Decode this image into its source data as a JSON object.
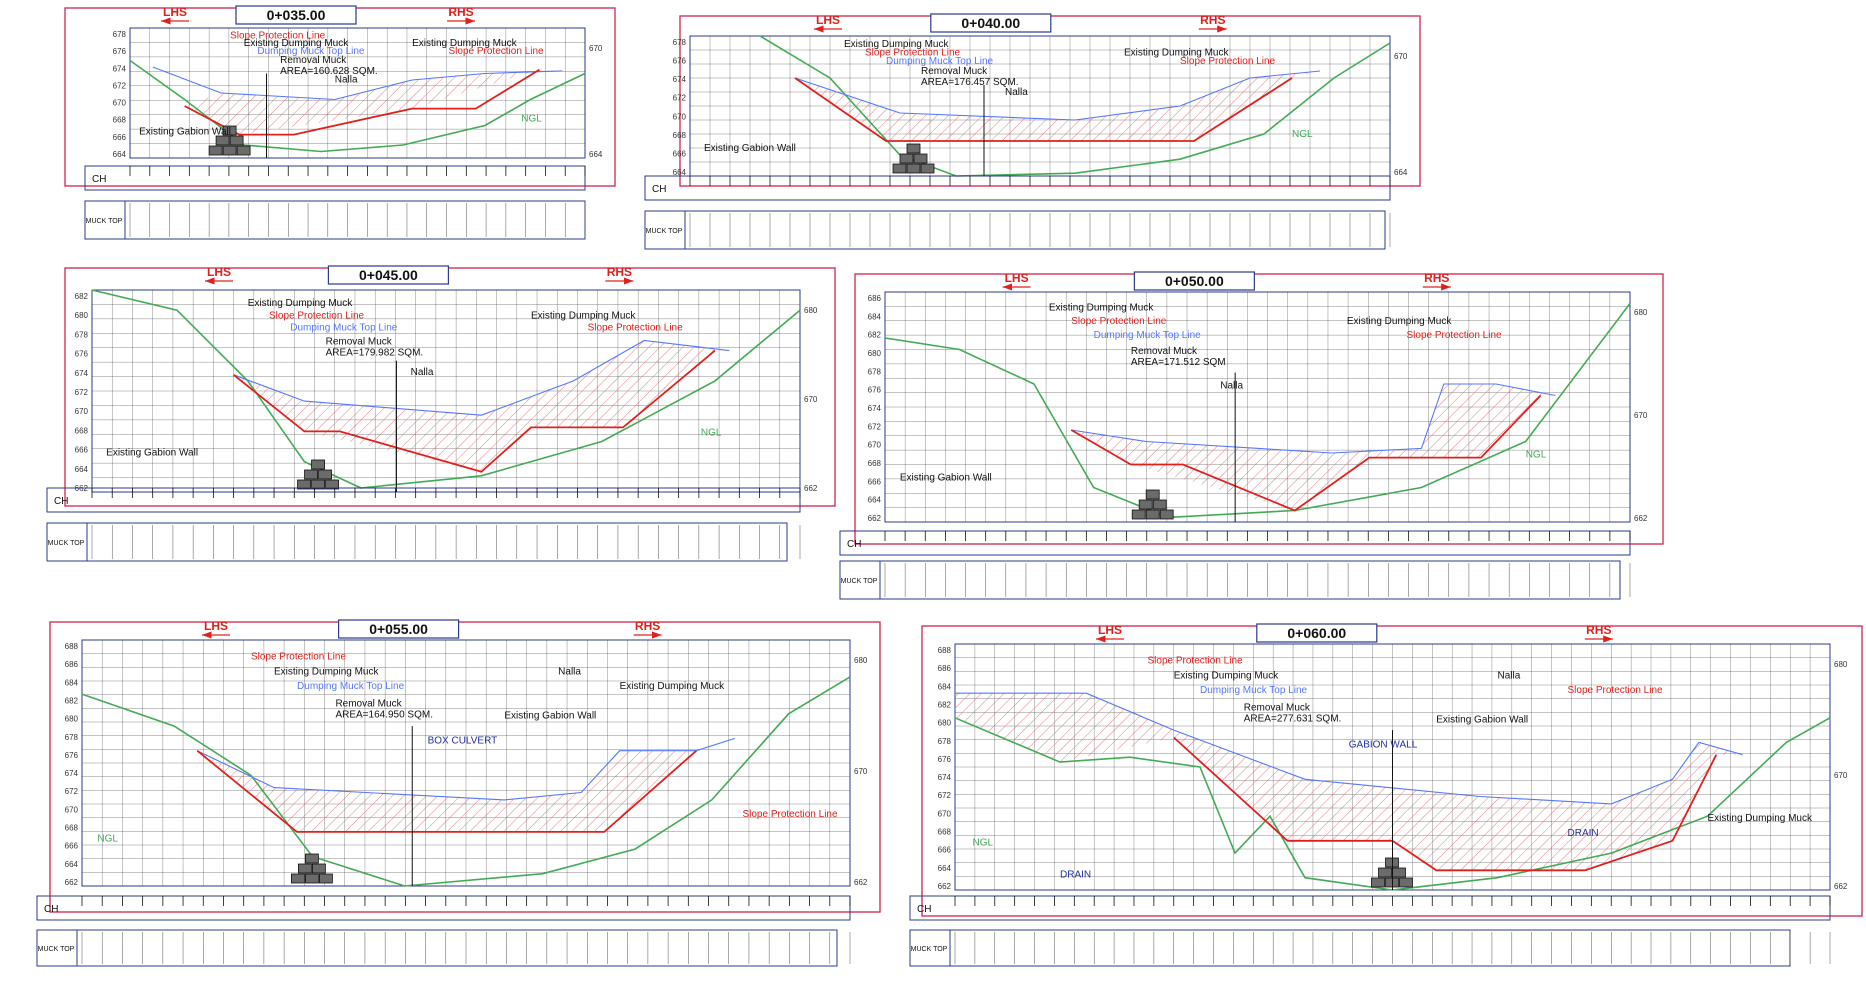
{
  "labels": {
    "lhs": "LHS",
    "rhs": "RHS",
    "ch": "CH",
    "muck_top": "MUCK TOP"
  },
  "colors": {
    "frame": "#d6335a",
    "grid": "#2a2a2a",
    "axis_box": "#2b3a8c",
    "slope_line": "#e0201c",
    "top_line": "#5577ff",
    "ngl": "#44aa55",
    "title_box": "#2b3a8c"
  },
  "sections": [
    {
      "id": "0+035.00",
      "title": "0+035.00",
      "area_label": "AREA=160.628 SQM.",
      "left_ticks": [
        "678",
        "676",
        "674",
        "672",
        "670",
        "668",
        "666",
        "664"
      ],
      "right_ticks": [
        "670",
        "664"
      ],
      "annotations": [
        "Slope Protection Line",
        "Existing Dumping Muck",
        "Dumping Muck Top Line",
        "Removal Muck",
        "Nalla",
        "Existing Dumping Muck",
        "Slope Protection Line",
        "NGL",
        "Existing Gabion Wall"
      ]
    },
    {
      "id": "0+040.00",
      "title": "0+040.00",
      "area_label": "AREA=176.457 SQM.",
      "left_ticks": [
        "678",
        "676",
        "674",
        "672",
        "670",
        "668",
        "666",
        "664"
      ],
      "right_ticks": [
        "670",
        "664"
      ],
      "annotations": [
        "Existing Dumping Muck",
        "Slope Protection Line",
        "Dumping Muck Top Line",
        "Removal Muck",
        "Nalla",
        "Existing Dumping Muck",
        "Slope Protection Line",
        "NGL",
        "Existing Gabion Wall"
      ]
    },
    {
      "id": "0+045.00",
      "title": "0+045.00",
      "area_label": "AREA=179.982 SQM.",
      "left_ticks": [
        "682",
        "680",
        "678",
        "676",
        "674",
        "672",
        "670",
        "668",
        "666",
        "664",
        "662"
      ],
      "right_ticks": [
        "680",
        "670",
        "662"
      ],
      "annotations": [
        "Existing Dumping Muck",
        "Slope Protection Line",
        "Dumping Muck Top Line",
        "Removal Muck",
        "Nalla",
        "Existing Dumping Muck",
        "Slope Protection Line",
        "NGL",
        "Existing Gabion Wall"
      ]
    },
    {
      "id": "0+050.00",
      "title": "0+050.00",
      "area_label": "AREA=171.512 SQM",
      "left_ticks": [
        "686",
        "684",
        "682",
        "680",
        "678",
        "676",
        "674",
        "672",
        "670",
        "668",
        "666",
        "664",
        "662"
      ],
      "right_ticks": [
        "680",
        "670",
        "662"
      ],
      "annotations": [
        "Existing Dumping Muck",
        "Slope Protection Line",
        "Dumping Muck Top Line",
        "Removal Muck",
        "Nalla",
        "Existing Dumping Muck",
        "Slope Protection Line",
        "NGL",
        "Existing Gabion Wall"
      ]
    },
    {
      "id": "0+055.00",
      "title": "0+055.00",
      "area_label": "AREA=164.950 SQM.",
      "left_ticks": [
        "688",
        "686",
        "684",
        "682",
        "680",
        "678",
        "676",
        "674",
        "672",
        "670",
        "668",
        "666",
        "664",
        "662"
      ],
      "right_ticks": [
        "680",
        "670",
        "662"
      ],
      "annotations": [
        "Slope Protection Line",
        "Existing Dumping Muck",
        "Dumping Muck Top Line",
        "Removal Muck",
        "BOX CULVERT",
        "Nalla",
        "Existing Dumping Muck",
        "Slope Protection Line",
        "NGL",
        "Existing Gabion Wall"
      ]
    },
    {
      "id": "0+060.00",
      "title": "0+060.00",
      "area_label": "AREA=277.631 SQM.",
      "left_ticks": [
        "688",
        "686",
        "684",
        "682",
        "680",
        "678",
        "676",
        "674",
        "672",
        "670",
        "668",
        "666",
        "664",
        "662"
      ],
      "right_ticks": [
        "680",
        "670",
        "662"
      ],
      "annotations": [
        "Slope Protection Line",
        "Existing Dumping Muck",
        "Dumping Muck Top Line",
        "Removal Muck",
        "GABION WALL",
        "Nalla",
        "Slope Protection Line",
        "Existing Dumping Muck",
        "NGL",
        "Existing Gabion Wall",
        "DRAIN",
        "DRAIN"
      ]
    }
  ]
}
